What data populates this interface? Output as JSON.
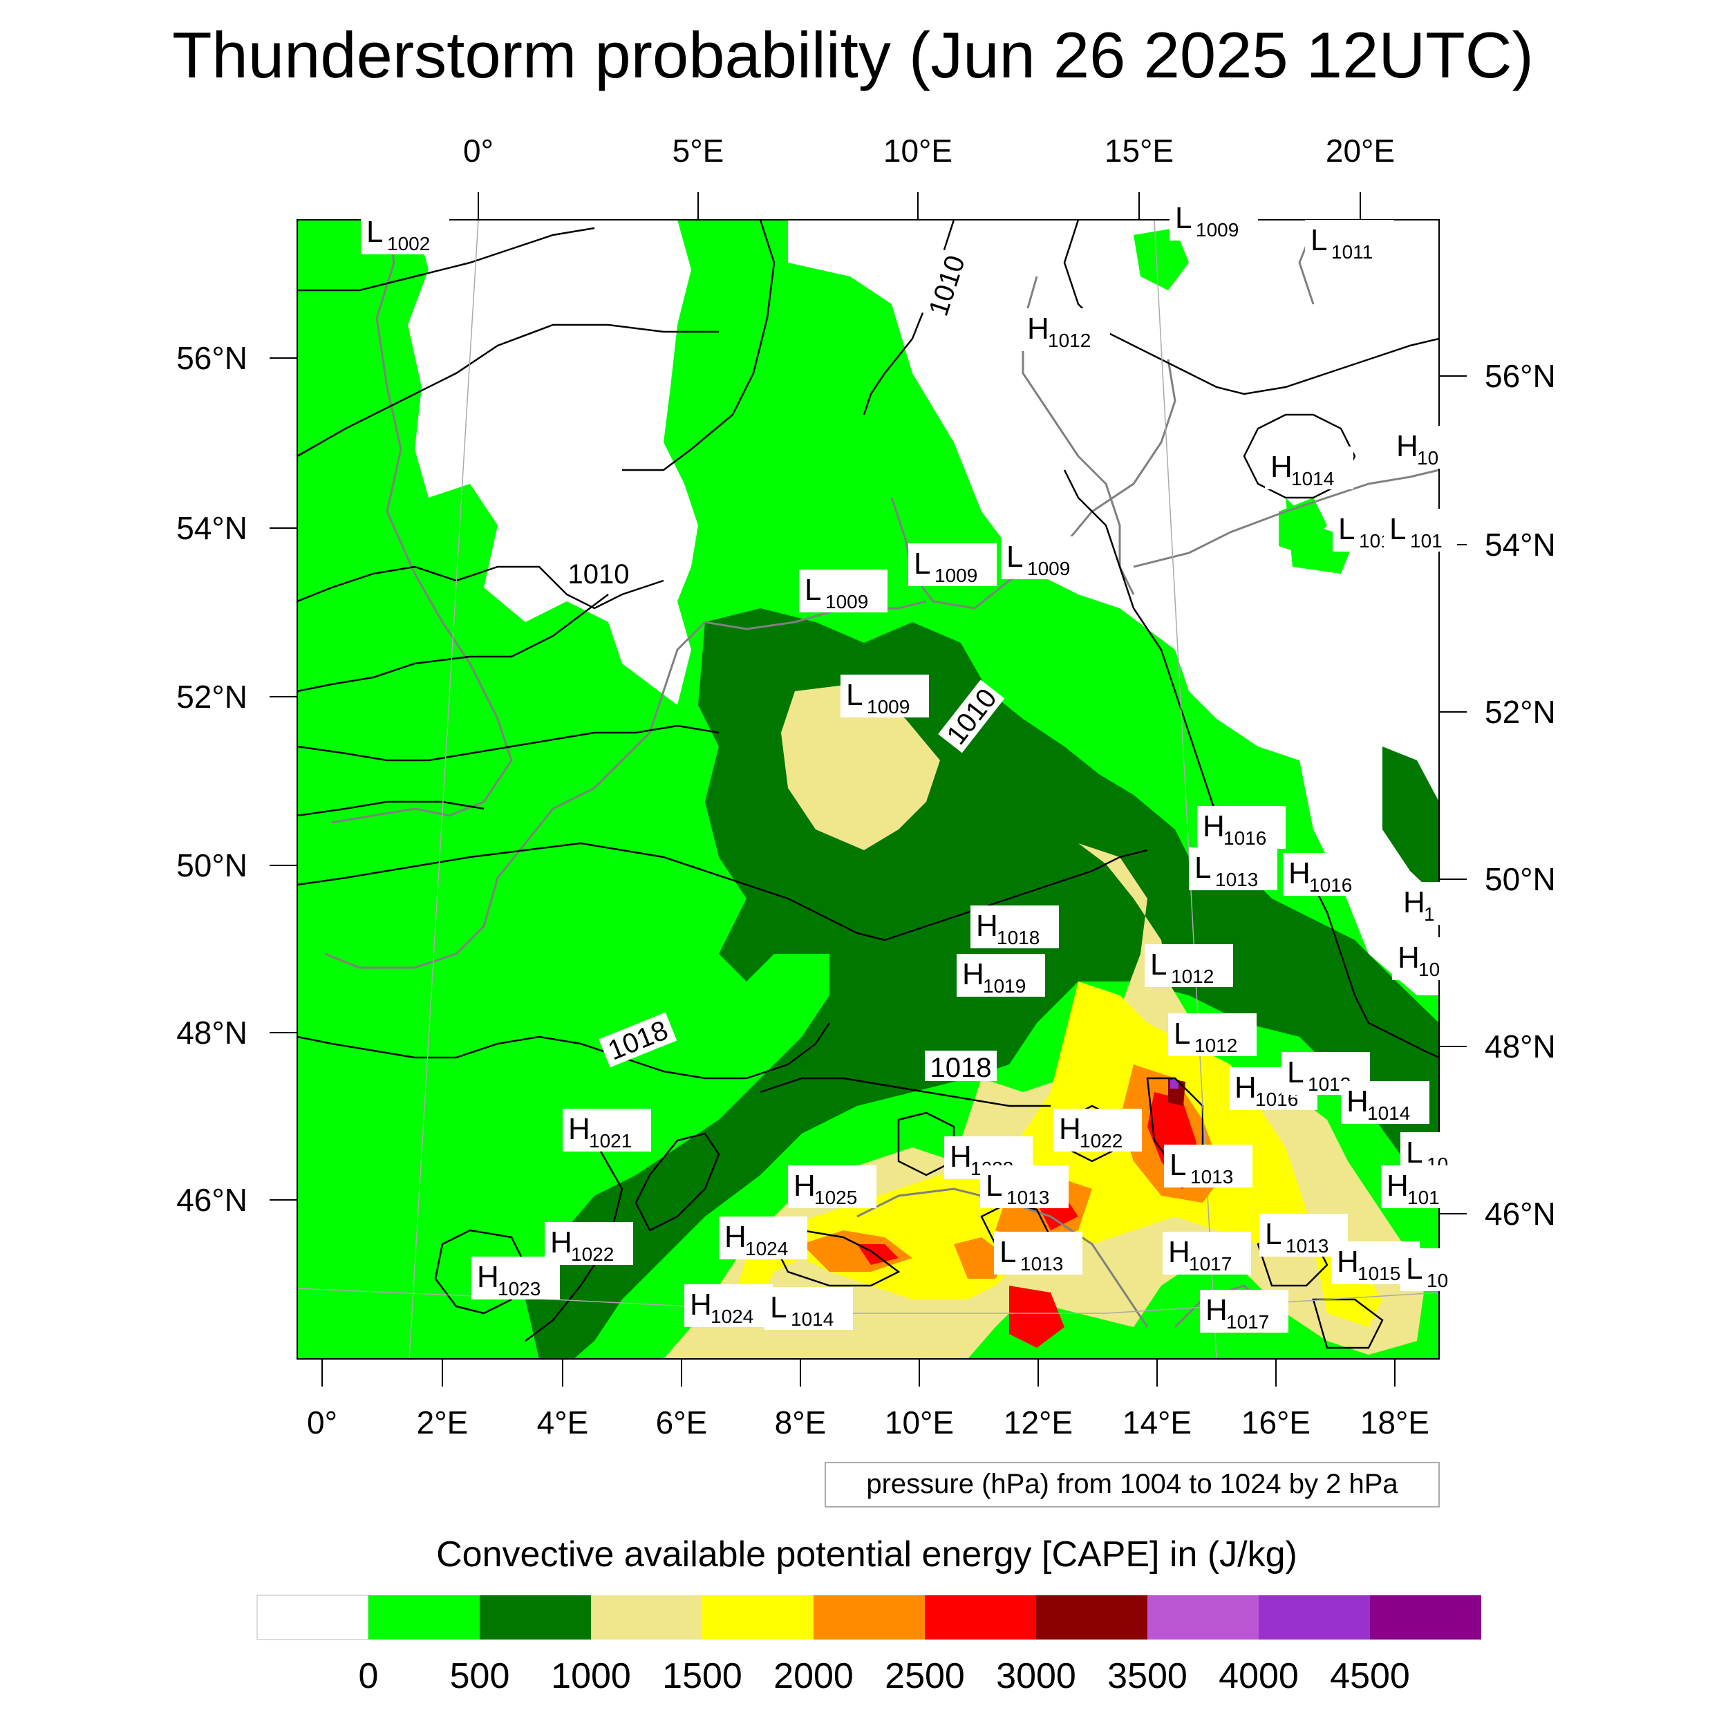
{
  "title": "Thunderstorm probability (Jun 26 2025 12UTC)",
  "pressure_note": "pressure (hPa) from 1004 to 1024 by 2 hPa",
  "colorbar": {
    "title": "Convective available potential energy [CAPE] in (J/kg)",
    "tick_labels": [
      "0",
      "500",
      "1000",
      "1500",
      "2000",
      "2500",
      "3000",
      "3500",
      "4000",
      "4500"
    ],
    "colors": [
      "#ffffff",
      "#00ff00",
      "#007800",
      "#f0e68c",
      "#ffff00",
      "#ff8c00",
      "#ff0000",
      "#8b0000",
      "#ba55d3",
      "#9932cc",
      "#8b008b"
    ]
  },
  "axes": {
    "top": [
      "0°",
      "5°E",
      "10°E",
      "15°E",
      "20°E"
    ],
    "bottom": [
      "0°",
      "2°E",
      "4°E",
      "6°E",
      "8°E",
      "10°E",
      "12°E",
      "14°E",
      "16°E",
      "18°E"
    ],
    "left": [
      "56°N",
      "54°N",
      "52°N",
      "50°N",
      "48°N",
      "46°N"
    ],
    "right": [
      "56°N",
      "54°N",
      "52°N",
      "50°N",
      "48°N",
      "46°N"
    ]
  },
  "isobar_labels": [
    "1010",
    "1010",
    "1010",
    "1018",
    "1018"
  ],
  "pressure_centers": [
    {
      "type": "L",
      "value": "1002"
    },
    {
      "type": "L",
      "value": "1009"
    },
    {
      "type": "L",
      "value": "1011"
    },
    {
      "type": "H",
      "value": "1012"
    },
    {
      "type": "H",
      "value": "1014"
    },
    {
      "type": "H",
      "value": "10"
    },
    {
      "type": "L",
      "value": "101"
    },
    {
      "type": "L",
      "value": "101"
    },
    {
      "type": "L",
      "value": "1009"
    },
    {
      "type": "L",
      "value": "1009"
    },
    {
      "type": "L",
      "value": "1009"
    },
    {
      "type": "L",
      "value": "1009"
    },
    {
      "type": "H",
      "value": "1016"
    },
    {
      "type": "L",
      "value": "1013"
    },
    {
      "type": "H",
      "value": "1016"
    },
    {
      "type": "H",
      "value": "1"
    },
    {
      "type": "H",
      "value": "1018"
    },
    {
      "type": "H",
      "value": "1019"
    },
    {
      "type": "L",
      "value": "1012"
    },
    {
      "type": "H",
      "value": "10"
    },
    {
      "type": "L",
      "value": "1012"
    },
    {
      "type": "H",
      "value": "1016"
    },
    {
      "type": "L",
      "value": "1012"
    },
    {
      "type": "H",
      "value": "1014"
    },
    {
      "type": "H",
      "value": "1022"
    },
    {
      "type": "H",
      "value": "1021"
    },
    {
      "type": "H",
      "value": "1023"
    },
    {
      "type": "L",
      "value": "1013"
    },
    {
      "type": "L",
      "value": "10"
    },
    {
      "type": "H",
      "value": "1025"
    },
    {
      "type": "L",
      "value": "1013"
    },
    {
      "type": "H",
      "value": "101"
    },
    {
      "type": "H",
      "value": "1024"
    },
    {
      "type": "H",
      "value": "1022"
    },
    {
      "type": "L",
      "value": "1013"
    },
    {
      "type": "L",
      "value": "1013"
    },
    {
      "type": "H",
      "value": "1015"
    },
    {
      "type": "L",
      "value": "10"
    },
    {
      "type": "H",
      "value": "1017"
    },
    {
      "type": "H",
      "value": "1023"
    },
    {
      "type": "H",
      "value": "1024"
    },
    {
      "type": "L",
      "value": "1014"
    },
    {
      "type": "H",
      "value": "1017"
    }
  ]
}
